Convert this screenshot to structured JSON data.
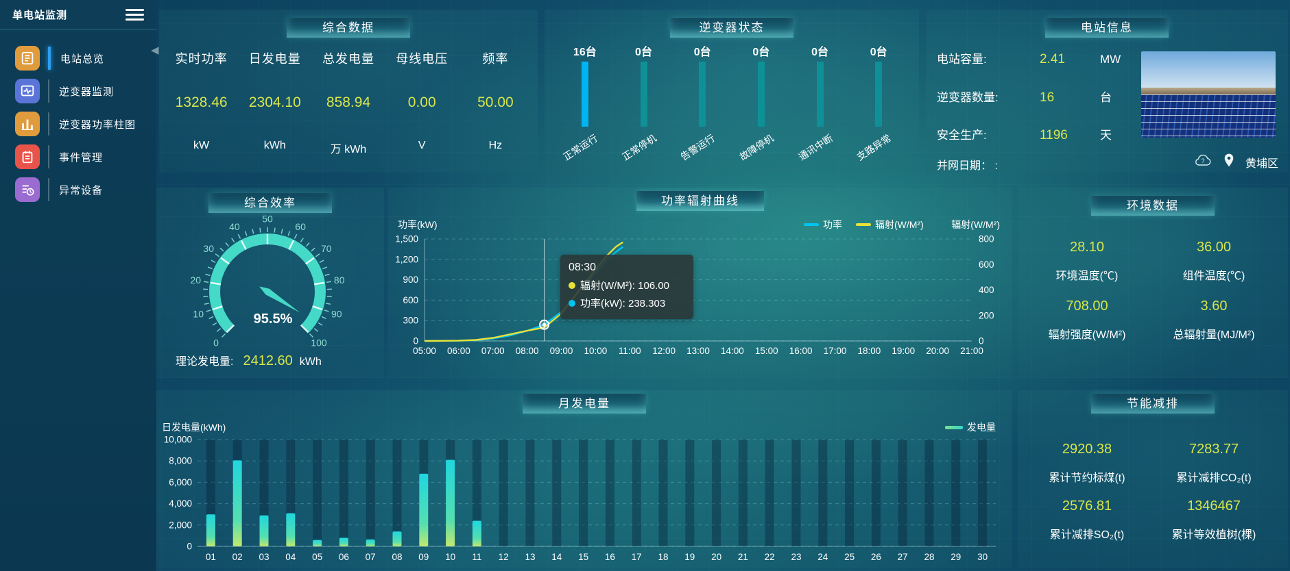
{
  "app": {
    "title": "单电站监测"
  },
  "sidebar": {
    "items": [
      {
        "label": "电站总览",
        "icon": "station-overview-icon",
        "color": "#e09b3d",
        "active": true
      },
      {
        "label": "逆变器监测",
        "icon": "inverter-monitor-icon",
        "color": "#5b74d8",
        "active": false
      },
      {
        "label": "逆变器功率柱图",
        "icon": "inverter-power-bars-icon",
        "color": "#e09b3d",
        "active": false
      },
      {
        "label": "事件管理",
        "icon": "event-management-icon",
        "color": "#e8544a",
        "active": false
      },
      {
        "label": "异常设备",
        "icon": "abnormal-device-icon",
        "color": "#9a6bd0",
        "active": false
      }
    ]
  },
  "overview": {
    "title": "综合数据",
    "stats": [
      {
        "label": "实时功率",
        "value": "1328.46",
        "unit": "kW"
      },
      {
        "label": "日发电量",
        "value": "2304.10",
        "unit": "kWh"
      },
      {
        "label": "总发电量",
        "value": "858.94",
        "unit": "万 kWh"
      },
      {
        "label": "母线电压",
        "value": "0.00",
        "unit": "V"
      },
      {
        "label": "频率",
        "value": "50.00",
        "unit": "Hz"
      }
    ]
  },
  "inverter_status": {
    "title": "逆变器状态",
    "bars": [
      {
        "count": "16台",
        "label": "正常运行",
        "highlight": true
      },
      {
        "count": "0台",
        "label": "正常停机",
        "highlight": false
      },
      {
        "count": "0台",
        "label": "告警运行",
        "highlight": false
      },
      {
        "count": "0台",
        "label": "故障停机",
        "highlight": false
      },
      {
        "count": "0台",
        "label": "通讯中断",
        "highlight": false
      },
      {
        "count": "0台",
        "label": "支路异常",
        "highlight": false
      }
    ]
  },
  "station_info": {
    "title": "电站信息",
    "rows": [
      {
        "label": "电站容量:",
        "value": "2.41",
        "unit": "MW"
      },
      {
        "label": "逆变器数量:",
        "value": "16",
        "unit": "台"
      },
      {
        "label": "安全生产:",
        "value": "1196",
        "unit": "天"
      }
    ],
    "grid_date_label": "并网日期：",
    "grid_date_value": ":",
    "district": "黄埔区"
  },
  "efficiency": {
    "title": "综合效率",
    "gauge_value": "95.5%",
    "theory_label": "理论发电量:",
    "theory_value": "2412.60",
    "theory_unit": "kWh"
  },
  "power_curve": {
    "title": "功率辐射曲线",
    "ylabel_left": "功率(kW)",
    "ylabel_right": "辐射(W/M²)",
    "legend": [
      {
        "label": "功率",
        "color": "#00c4f0"
      },
      {
        "label": "辐射(W/M²)",
        "color": "#e6e23a"
      }
    ],
    "tooltip": {
      "time": "08:30",
      "rows": [
        {
          "dot": "#e6e23a",
          "text": "辐射(W/M²): 106.00"
        },
        {
          "dot": "#00c4f0",
          "text": "功率(kW): 238.303"
        }
      ]
    }
  },
  "environment": {
    "title": "环境数据",
    "items": [
      {
        "value": "28.10",
        "label": "环境温度(℃)"
      },
      {
        "value": "36.00",
        "label": "组件温度(℃)"
      },
      {
        "value": "708.00",
        "label": "辐射强度(W/M²)"
      },
      {
        "value": "3.60",
        "label": "总辐射量(MJ/M²)"
      }
    ]
  },
  "monthly": {
    "title": "月发电量",
    "ylabel": "日发电量(kWh)",
    "legend": "发电量"
  },
  "saving": {
    "title": "节能减排",
    "items": [
      {
        "value": "2920.38",
        "label": "累计节约标煤(t)"
      },
      {
        "value": "7283.77",
        "label": "累计减排CO₂(t)"
      },
      {
        "value": "2576.81",
        "label": "累计减排SO₂(t)"
      },
      {
        "value": "1346467",
        "label": "累计等效植树(棵)"
      }
    ]
  },
  "chart_data": [
    {
      "id": "efficiency_gauge",
      "type": "gauge",
      "title": "综合效率",
      "min": 0,
      "max": 100,
      "value": 95.5,
      "unit": "%",
      "tick_labels": [
        0,
        10,
        20,
        30,
        40,
        50,
        60,
        70,
        80,
        90,
        100
      ],
      "color": "#45d9c8"
    },
    {
      "id": "power_radiation",
      "type": "line",
      "title": "功率辐射曲线",
      "x_ticks": [
        "05:00",
        "06:00",
        "07:00",
        "08:00",
        "09:00",
        "10:00",
        "11:00",
        "12:00",
        "13:00",
        "14:00",
        "15:00",
        "16:00",
        "17:00",
        "18:00",
        "19:00",
        "20:00",
        "21:00"
      ],
      "x_range_hours": [
        5,
        21
      ],
      "y_left": {
        "label": "功率(kW)",
        "ticks": [
          "1,500",
          "1,200",
          "900",
          "600",
          "300",
          "0"
        ],
        "max": 1500
      },
      "y_right": {
        "label": "辐射(W/M²)",
        "ticks": [
          "800",
          "600",
          "400",
          "200",
          "0"
        ],
        "max": 800
      },
      "series": [
        {
          "name": "功率",
          "color": "#00c4f0",
          "axis": "left",
          "points": [
            [
              5,
              0
            ],
            [
              5.5,
              1
            ],
            [
              6,
              3
            ],
            [
              6.5,
              12
            ],
            [
              7,
              35
            ],
            [
              7.5,
              80
            ],
            [
              8,
              150
            ],
            [
              8.5,
              238.303
            ],
            [
              9,
              430
            ],
            [
              9.5,
              720
            ],
            [
              10,
              1000
            ],
            [
              10.3,
              1180
            ],
            [
              10.6,
              1310
            ],
            [
              10.8,
              1385
            ]
          ]
        },
        {
          "name": "辐射(W/M²)",
          "color": "#e6e23a",
          "axis": "right",
          "points": [
            [
              5,
              0
            ],
            [
              5.5,
              1
            ],
            [
              6,
              2
            ],
            [
              6.5,
              8
            ],
            [
              7,
              24
            ],
            [
              7.5,
              52
            ],
            [
              8,
              80
            ],
            [
              8.5,
              106
            ],
            [
              9,
              215
            ],
            [
              9.5,
              390
            ],
            [
              10,
              560
            ],
            [
              10.3,
              660
            ],
            [
              10.6,
              740
            ],
            [
              10.8,
              775
            ]
          ]
        }
      ],
      "hover_x": 8.5,
      "hover_values": {
        "power": 238.303,
        "radiation": 106.0
      }
    },
    {
      "id": "monthly_generation",
      "type": "bar",
      "title": "月发电量",
      "xlabel": "",
      "ylabel": "日发电量(kWh)",
      "ylim": [
        0,
        10000
      ],
      "y_ticks": [
        "10,000",
        "8,000",
        "6,000",
        "4,000",
        "2,000",
        "0"
      ],
      "categories": [
        "01",
        "02",
        "03",
        "04",
        "05",
        "06",
        "07",
        "08",
        "09",
        "10",
        "11",
        "12",
        "13",
        "14",
        "15",
        "16",
        "17",
        "18",
        "19",
        "20",
        "21",
        "22",
        "23",
        "24",
        "25",
        "26",
        "27",
        "28",
        "29",
        "30"
      ],
      "values": [
        3000,
        8050,
        2900,
        3100,
        600,
        800,
        650,
        1400,
        6800,
        8100,
        2400,
        0,
        0,
        0,
        0,
        0,
        0,
        0,
        0,
        0,
        0,
        0,
        0,
        0,
        0,
        0,
        0,
        0,
        0,
        0
      ],
      "legend": "发电量"
    }
  ]
}
